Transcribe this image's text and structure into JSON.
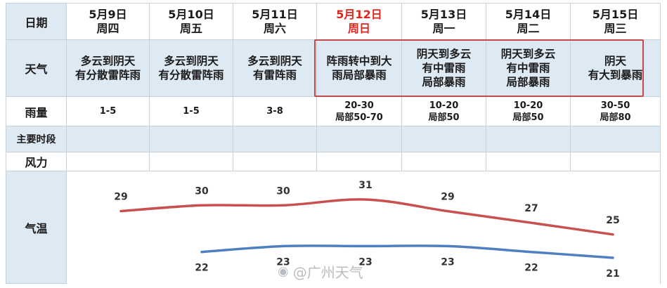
{
  "row_labels": {
    "date": "日期",
    "weather": "天气",
    "rain": "雨量",
    "period": "主要时段",
    "wind": "风力",
    "temp": "气温"
  },
  "days": [
    {
      "date": "5月9日",
      "weekday": "周四",
      "weather": "多云到阴天有分散雷阵雨",
      "rain_line1": "1-5",
      "rain_line2": ""
    },
    {
      "date": "5月10日",
      "weekday": "周五",
      "weather": "多云到阴天有分散雷阵雨",
      "rain_line1": "1-5",
      "rain_line2": ""
    },
    {
      "date": "5月11日",
      "weekday": "周六",
      "weather": "多云到阴天有雷阵雨",
      "rain_line1": "3-8",
      "rain_line2": ""
    },
    {
      "date": "5月12日",
      "weekday": "周日",
      "weather": "阵雨转中到大雨局部暴雨",
      "rain_line1": "20-30",
      "rain_line2": "局部50-70"
    },
    {
      "date": "5月13日",
      "weekday": "周一",
      "weather": "阴天到多云有中雷雨局部暴雨",
      "rain_line1": "10-20",
      "rain_line2": "局部50"
    },
    {
      "date": "5月14日",
      "weekday": "周二",
      "weather": "阴天到多云有中雷雨局部暴雨",
      "rain_line1": "10-20",
      "rain_line2": "局部50"
    },
    {
      "date": "5月15日",
      "weekday": "周三",
      "weather": "阴天有大到暴雨",
      "rain_line1": "30-50",
      "rain_line2": "局部80"
    }
  ],
  "weather_lines": [
    [
      "多云到阴天",
      "有分散雷阵雨"
    ],
    [
      "多云到阴天",
      "有分散雷阵雨"
    ],
    [
      "多云到阴天",
      "有雷阵雨"
    ],
    [
      "阵雨转中到大",
      "雨局部暴雨"
    ],
    [
      "阴天到多云",
      "有中雷雨",
      "局部暴雨"
    ],
    [
      "阴天到多云",
      "有中雷雨",
      "局部暴雨"
    ],
    [
      "阴天",
      "有大到暴雨"
    ]
  ],
  "chart_data": {
    "type": "line",
    "categories": [
      "5月9日",
      "5月10日",
      "5月11日",
      "5月12日",
      "5月13日",
      "5月14日",
      "5月15日"
    ],
    "series": [
      {
        "values": [
          29,
          30,
          30,
          31,
          29,
          27,
          25
        ],
        "color": "#c8514f"
      },
      {
        "values": [
          null,
          22,
          23,
          23,
          23,
          22,
          21
        ],
        "color": "#4f7fc1"
      }
    ],
    "legend": "none",
    "grid": false
  },
  "highlight": {
    "date_color": "#e1241c",
    "box_color": "#c44a4a"
  },
  "watermark": "@广州天气"
}
